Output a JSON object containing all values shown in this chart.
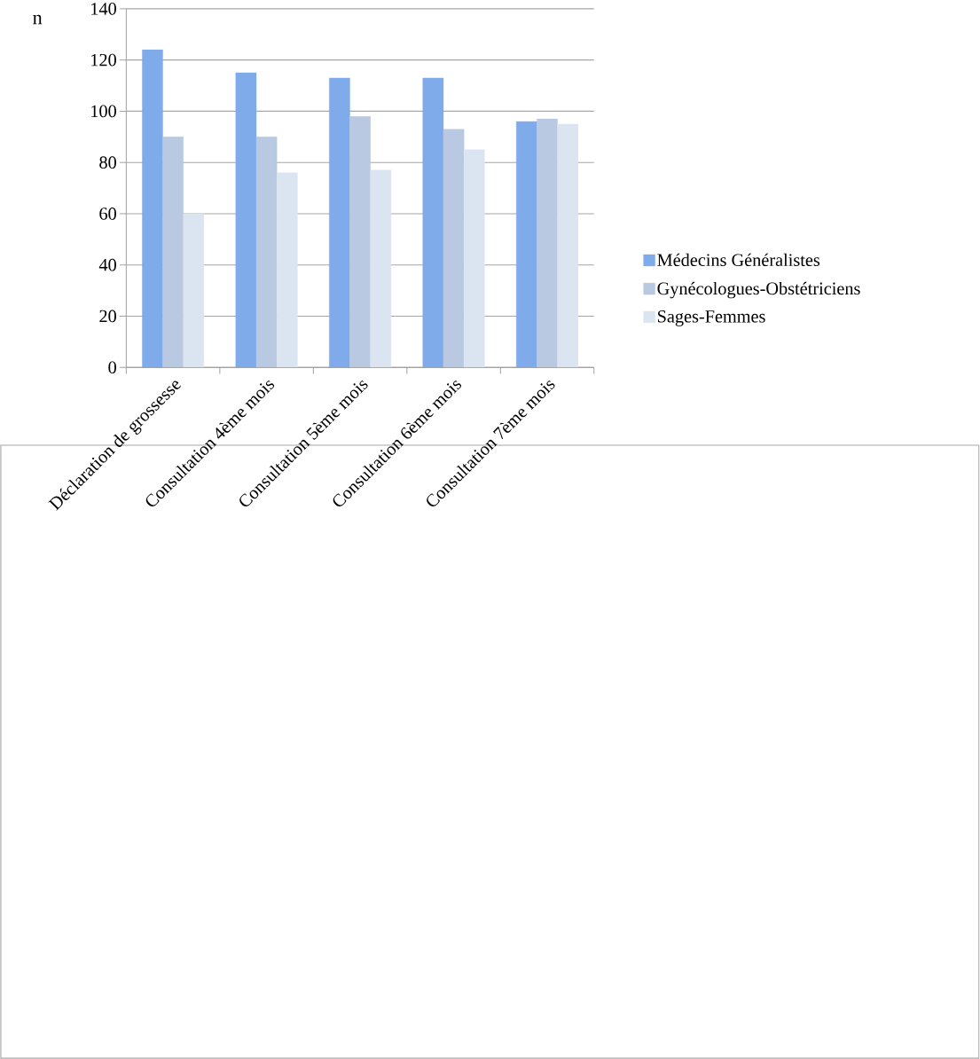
{
  "chart_data": {
    "type": "bar",
    "ylabel": "n",
    "categories": [
      "Déclaration de grossesse",
      "Consultation 4ème mois",
      "Consultation 5ème mois",
      "Consultation 6ème mois",
      "Consultation 7ème mois"
    ],
    "series": [
      {
        "name": "Médecins Généralistes",
        "color": "#7fabeb",
        "values": [
          124,
          115,
          113,
          113,
          96
        ]
      },
      {
        "name": "Gynécologues-Obstétriciens",
        "color": "#b9c9e1",
        "values": [
          90,
          90,
          98,
          93,
          97
        ]
      },
      {
        "name": "Sages-Femmes",
        "color": "#dbe5f1",
        "values": [
          60,
          76,
          77,
          85,
          95
        ]
      }
    ],
    "ylim": [
      0,
      140
    ],
    "yticks": [
      0,
      20,
      40,
      60,
      80,
      100,
      120,
      140
    ],
    "grid": "y",
    "legend": "right"
  }
}
